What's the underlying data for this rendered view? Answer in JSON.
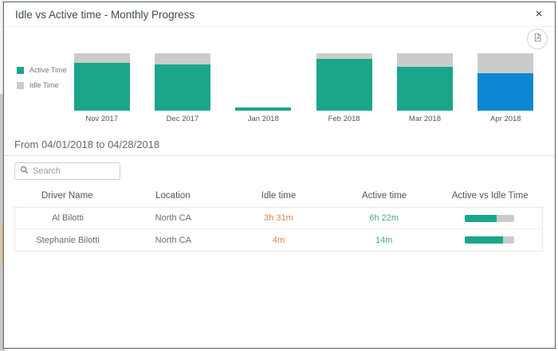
{
  "dialog": {
    "title": "Idle vs Active time - Monthly Progress"
  },
  "icons": {
    "close": "×"
  },
  "chart_data": {
    "type": "bar",
    "stacked": true,
    "unit": "percent_of_column_height",
    "categories": [
      "Nov 2017",
      "Dec 2017",
      "Jan 2018",
      "Feb 2018",
      "Mar 2018",
      "Apr 2018"
    ],
    "series": [
      {
        "name": "Active Time",
        "values": [
          83,
          81,
          5,
          90,
          76,
          65
        ]
      },
      {
        "name": "Idle Time",
        "values": [
          17,
          19,
          0,
          10,
          24,
          35
        ]
      }
    ],
    "selected_category": "Apr 2018",
    "legend": [
      {
        "label": "Active Time",
        "color": "#1aa68a"
      },
      {
        "label": "Idle Time",
        "color": "#cbcbcb"
      }
    ],
    "colors": {
      "active": "#1aa68a",
      "idle": "#cbcbcb",
      "selected_active": "#0c87d1"
    },
    "legend_position": "left",
    "grid": false
  },
  "period": {
    "label": "From 04/01/2018 to 04/28/2018"
  },
  "search": {
    "placeholder": "Search"
  },
  "table": {
    "columns": [
      "Driver Name",
      "Location",
      "Idle time",
      "Active time",
      "Active vs Idle Time"
    ],
    "rows": [
      {
        "driver": "Al Bilotti",
        "location": "North CA",
        "idle": "3h 31m",
        "active": "6h 22m",
        "active_pct": 64
      },
      {
        "driver": "Stephanie Bilotti",
        "location": "North CA",
        "idle": "4m",
        "active": "14m",
        "active_pct": 78
      }
    ]
  },
  "colors": {
    "accent_teal": "#1aa68a",
    "accent_blue": "#0c87d1",
    "idle_gray": "#cbcbcb",
    "idle_text": "#e0805f",
    "active_text": "#4fa396"
  }
}
